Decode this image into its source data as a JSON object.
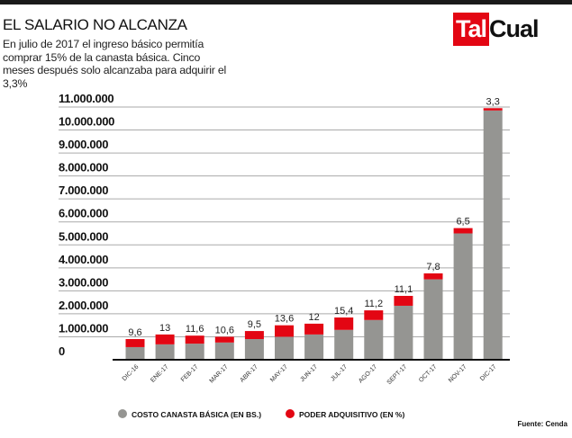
{
  "title": "EL SALARIO NO ALCANZA",
  "subtitle": "En julio de 2017 el ingreso básico permitía comprar 15% de la canasta básica. Cinco meses después solo alcanzaba para adquirir el 3,3%",
  "logo": {
    "part1": "Tal",
    "part2": "Cual"
  },
  "source": "Fuente: Cenda",
  "colors": {
    "gray": "#959592",
    "red": "#e30613",
    "grid": "#aaaaaa",
    "axis": "#111111"
  },
  "chart_data": {
    "type": "bar",
    "stacked": true,
    "categories": [
      "DIC-16",
      "ENE-17",
      "FEB-17",
      "MAR-17",
      "ABR-17",
      "MAY-17",
      "JUN-17",
      "JUL-17",
      "AGO-17",
      "SEPT-17",
      "OCT-17",
      "NOV-17",
      "DIC-17"
    ],
    "series": [
      {
        "name": "COSTO CANASTA BÁSICA (EN BS.)",
        "color": "#959592",
        "values": [
          550000,
          670000,
          700000,
          750000,
          900000,
          1000000,
          1100000,
          1300000,
          1730000,
          2350000,
          3500000,
          5500000,
          10850000
        ]
      },
      {
        "name": "PODER ADQUISITIVO (EN %)",
        "color": "#e30613",
        "values": [
          350000,
          430000,
          350000,
          250000,
          350000,
          500000,
          470000,
          540000,
          420000,
          430000,
          260000,
          230000,
          100000
        ],
        "labels": [
          "9,6",
          "13",
          "11,6",
          "10,6",
          "9,5",
          "13,6",
          "12",
          "15,4",
          "11,2",
          "11,1",
          "7,8",
          "6,5",
          "3,3"
        ]
      }
    ],
    "yticks": [
      "0",
      "1.000.000",
      "2.000.000",
      "3.000.000",
      "4.000.000",
      "5.000.000",
      "6.000.000",
      "7.000.000",
      "8.000.000",
      "9.000.000",
      "10.000.000",
      "11.000.000"
    ],
    "ylim": [
      0,
      11000000
    ],
    "grid": true,
    "legend": "bottom"
  }
}
